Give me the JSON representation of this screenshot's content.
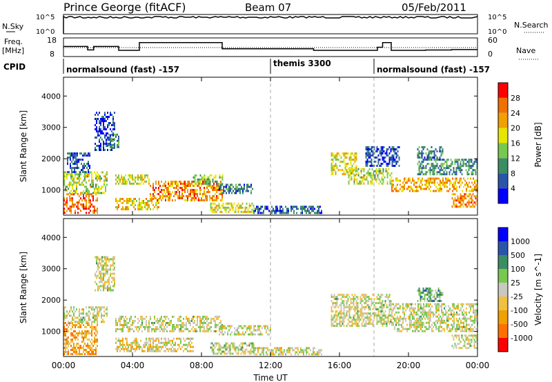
{
  "header": {
    "station": "Prince George (fitACF)",
    "beam": "Beam 07",
    "date": "05/Feb/2011"
  },
  "nsky_panel": {
    "left_label": "N.Sky",
    "right_label": "N.Search",
    "left_ticks": [
      "10^5",
      "10^0"
    ],
    "right_ticks": [
      "10^5",
      "10^0"
    ]
  },
  "freq_panel": {
    "left_label_line1": "Freq.",
    "left_label_line2": "[MHz]",
    "right_label": "Nave",
    "left_ticks": [
      "18",
      "8"
    ],
    "right_ticks": [
      "60",
      "0"
    ],
    "freq_steps": [
      {
        "t0": 0.0,
        "t1": 1.4,
        "mhz": 12.5
      },
      {
        "t0": 1.4,
        "t1": 1.75,
        "mhz": 10.3
      },
      {
        "t0": 1.75,
        "t1": 3.2,
        "mhz": 12.5
      },
      {
        "t0": 3.2,
        "t1": 4.4,
        "mhz": 10.0
      },
      {
        "t0": 4.4,
        "t1": 9.2,
        "mhz": 15.0
      },
      {
        "t0": 9.2,
        "t1": 14.5,
        "mhz": 11.0
      },
      {
        "t0": 14.5,
        "t1": 15.5,
        "mhz": 10.0
      },
      {
        "t0": 15.5,
        "t1": 18.2,
        "mhz": 10.0
      },
      {
        "t0": 18.2,
        "t1": 18.5,
        "mhz": 12.0
      },
      {
        "t0": 18.5,
        "t1": 19.0,
        "mhz": 15.0
      },
      {
        "t0": 19.0,
        "t1": 21.0,
        "mhz": 10.0
      },
      {
        "t0": 21.0,
        "t1": 22.5,
        "mhz": 10.2
      },
      {
        "t0": 22.5,
        "t1": 24.0,
        "mhz": 10.5
      }
    ]
  },
  "cpid_panel": {
    "label": "CPID",
    "segments": [
      {
        "t0": 0.0,
        "t1": 12.0,
        "name": "normalsound (fast) -157"
      },
      {
        "t0": 12.0,
        "t1": 18.0,
        "name": "themis 3300"
      },
      {
        "t0": 18.0,
        "t1": 24.0,
        "name": "normalsound (fast) -157"
      }
    ]
  },
  "chart_data": [
    {
      "type": "heatmap",
      "quantity": "power",
      "title": "",
      "xlabel": "",
      "ylabel": "Slant Range [km]",
      "xlim_hours": [
        0,
        24
      ],
      "ylim": [
        200,
        4600
      ],
      "yticks": [
        "1000",
        "2000",
        "3000",
        "4000"
      ],
      "colorbar_label": "Power [dB]",
      "colorbar_ticks": [
        "4",
        "8",
        "12",
        "16",
        "20",
        "24",
        "28"
      ],
      "colorscale": [
        "#0000ff",
        "#2a55a8",
        "#3c8c64",
        "#78c850",
        "#e6e600",
        "#f0a000",
        "#f07000",
        "#ff0000"
      ],
      "vertical_dashed_lines_hours": [
        12,
        18
      ],
      "echo_regions": [
        {
          "t0": 0.0,
          "t1": 2.0,
          "r0": 300,
          "r1": 900,
          "value_db": 26
        },
        {
          "t0": 0.0,
          "t1": 2.5,
          "r0": 900,
          "r1": 1600,
          "value_db": 16
        },
        {
          "t0": 0.2,
          "t1": 1.5,
          "r0": 1600,
          "r1": 2200,
          "value_db": 6
        },
        {
          "t0": 1.8,
          "t1": 3.0,
          "r0": 2300,
          "r1": 3500,
          "value_db": 5
        },
        {
          "t0": 2.6,
          "t1": 3.2,
          "r0": 2400,
          "r1": 2800,
          "value_db": 10
        },
        {
          "t0": 3.0,
          "t1": 5.5,
          "r0": 400,
          "r1": 750,
          "value_db": 20
        },
        {
          "t0": 3.0,
          "t1": 5.0,
          "r0": 1200,
          "r1": 1500,
          "value_db": 18
        },
        {
          "t0": 5.0,
          "t1": 9.2,
          "r0": 700,
          "r1": 1300,
          "value_db": 24
        },
        {
          "t0": 7.5,
          "t1": 9.2,
          "r0": 1200,
          "r1": 1500,
          "value_db": 14
        },
        {
          "t0": 8.5,
          "t1": 11.0,
          "r0": 300,
          "r1": 600,
          "value_db": 18
        },
        {
          "t0": 9.0,
          "t1": 11.0,
          "r0": 900,
          "r1": 1200,
          "value_db": 8
        },
        {
          "t0": 11.0,
          "t1": 15.0,
          "r0": 250,
          "r1": 500,
          "value_db": 6
        },
        {
          "t0": 15.5,
          "t1": 17.0,
          "r0": 1500,
          "r1": 2200,
          "value_db": 18
        },
        {
          "t0": 16.5,
          "t1": 19.0,
          "r0": 1200,
          "r1": 1700,
          "value_db": 16
        },
        {
          "t0": 17.5,
          "t1": 19.5,
          "r0": 1800,
          "r1": 2400,
          "value_db": 6
        },
        {
          "t0": 19.0,
          "t1": 24.0,
          "r0": 1000,
          "r1": 1400,
          "value_db": 22
        },
        {
          "t0": 20.5,
          "t1": 24.0,
          "r0": 1500,
          "r1": 2000,
          "value_db": 10
        },
        {
          "t0": 20.5,
          "t1": 22.0,
          "r0": 2000,
          "r1": 2400,
          "value_db": 8
        },
        {
          "t0": 22.5,
          "t1": 24.0,
          "r0": 500,
          "r1": 900,
          "value_db": 24
        }
      ]
    },
    {
      "type": "heatmap",
      "quantity": "velocity",
      "title": "",
      "xlabel": "Time UT",
      "ylabel": "Slant Range [km]",
      "xlim_hours": [
        0,
        24
      ],
      "ylim": [
        200,
        4600
      ],
      "xticks": [
        "00:00",
        "04:00",
        "08:00",
        "12:00",
        "16:00",
        "20:00",
        "00:00"
      ],
      "yticks": [
        "1000",
        "2000",
        "3000",
        "4000"
      ],
      "colorbar_label": "Velocity [m s^-1]",
      "colorbar_ticks": [
        "1000",
        "500",
        "100",
        "25",
        "-25",
        "-100",
        "-500",
        "-1000"
      ],
      "colorscale": [
        "#ff0000",
        "#ff7000",
        "#f0a000",
        "#f0c040",
        "#c8c8c0",
        "#78c850",
        "#3c8c64",
        "#2a55a8",
        "#0000ff"
      ],
      "vertical_dashed_lines_hours": [
        12,
        18
      ],
      "echo_regions": [
        {
          "t0": 0.0,
          "t1": 2.0,
          "r0": 300,
          "r1": 1300,
          "value_ms": -500
        },
        {
          "t0": 0.0,
          "t1": 2.5,
          "r0": 1300,
          "r1": 1800,
          "value_ms": 0
        },
        {
          "t0": 1.8,
          "t1": 3.0,
          "r0": 2300,
          "r1": 3400,
          "value_ms": 0
        },
        {
          "t0": 3.0,
          "t1": 5.5,
          "r0": 400,
          "r1": 800,
          "value_ms": -200
        },
        {
          "t0": 3.0,
          "t1": 9.2,
          "r0": 1000,
          "r1": 1500,
          "value_ms": 0
        },
        {
          "t0": 5.0,
          "t1": 7.5,
          "r0": 400,
          "r1": 800,
          "value_ms": -150
        },
        {
          "t0": 8.5,
          "t1": 11.0,
          "r0": 300,
          "r1": 650,
          "value_ms": 60
        },
        {
          "t0": 9.0,
          "t1": 12.0,
          "r0": 900,
          "r1": 1200,
          "value_ms": 0
        },
        {
          "t0": 11.0,
          "t1": 15.0,
          "r0": 250,
          "r1": 500,
          "value_ms": -60
        },
        {
          "t0": 15.5,
          "t1": 19.0,
          "r0": 1200,
          "r1": 2200,
          "value_ms": 0
        },
        {
          "t0": 19.0,
          "t1": 24.0,
          "r0": 1000,
          "r1": 1900,
          "value_ms": 0
        },
        {
          "t0": 20.5,
          "t1": 22.0,
          "r0": 2000,
          "r1": 2400,
          "value_ms": 300
        },
        {
          "t0": 22.5,
          "t1": 24.0,
          "r0": 500,
          "r1": 900,
          "value_ms": 0
        }
      ]
    }
  ]
}
